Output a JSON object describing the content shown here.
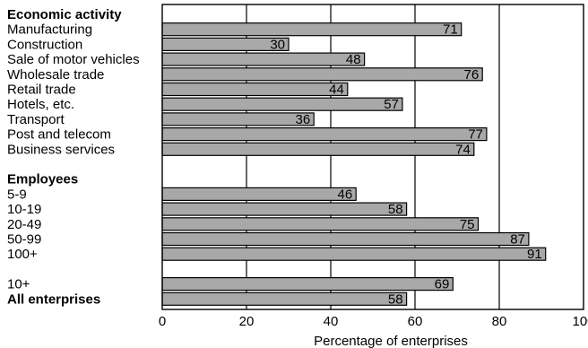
{
  "chart_data": {
    "type": "bar",
    "orientation": "horizontal",
    "xlabel": "Percentage of enterprises",
    "xlim": [
      0,
      100
    ],
    "xticks": [
      0,
      20,
      40,
      60,
      80,
      100
    ],
    "grid": "vertical lines at 20, 40, 60, 80",
    "bar_color": "#a8a8a8",
    "groups": [
      {
        "heading": "Economic activity",
        "categories": [
          "Manufacturing",
          "Construction",
          "Sale of motor vehicles",
          "Wholesale trade",
          "Retail trade",
          "Hotels, etc.",
          "Transport",
          "Post and telecom",
          "Business services"
        ],
        "values": [
          71,
          30,
          48,
          76,
          44,
          57,
          36,
          77,
          74
        ]
      },
      {
        "heading": "Employees",
        "categories": [
          "5-9",
          "10-19",
          "20-49",
          "50-99",
          "100+"
        ],
        "values": [
          46,
          58,
          75,
          87,
          91
        ]
      },
      {
        "heading": "",
        "categories": [
          "10+",
          "All enterprises"
        ],
        "values": [
          69,
          58
        ],
        "bold": [
          false,
          true
        ]
      }
    ]
  }
}
